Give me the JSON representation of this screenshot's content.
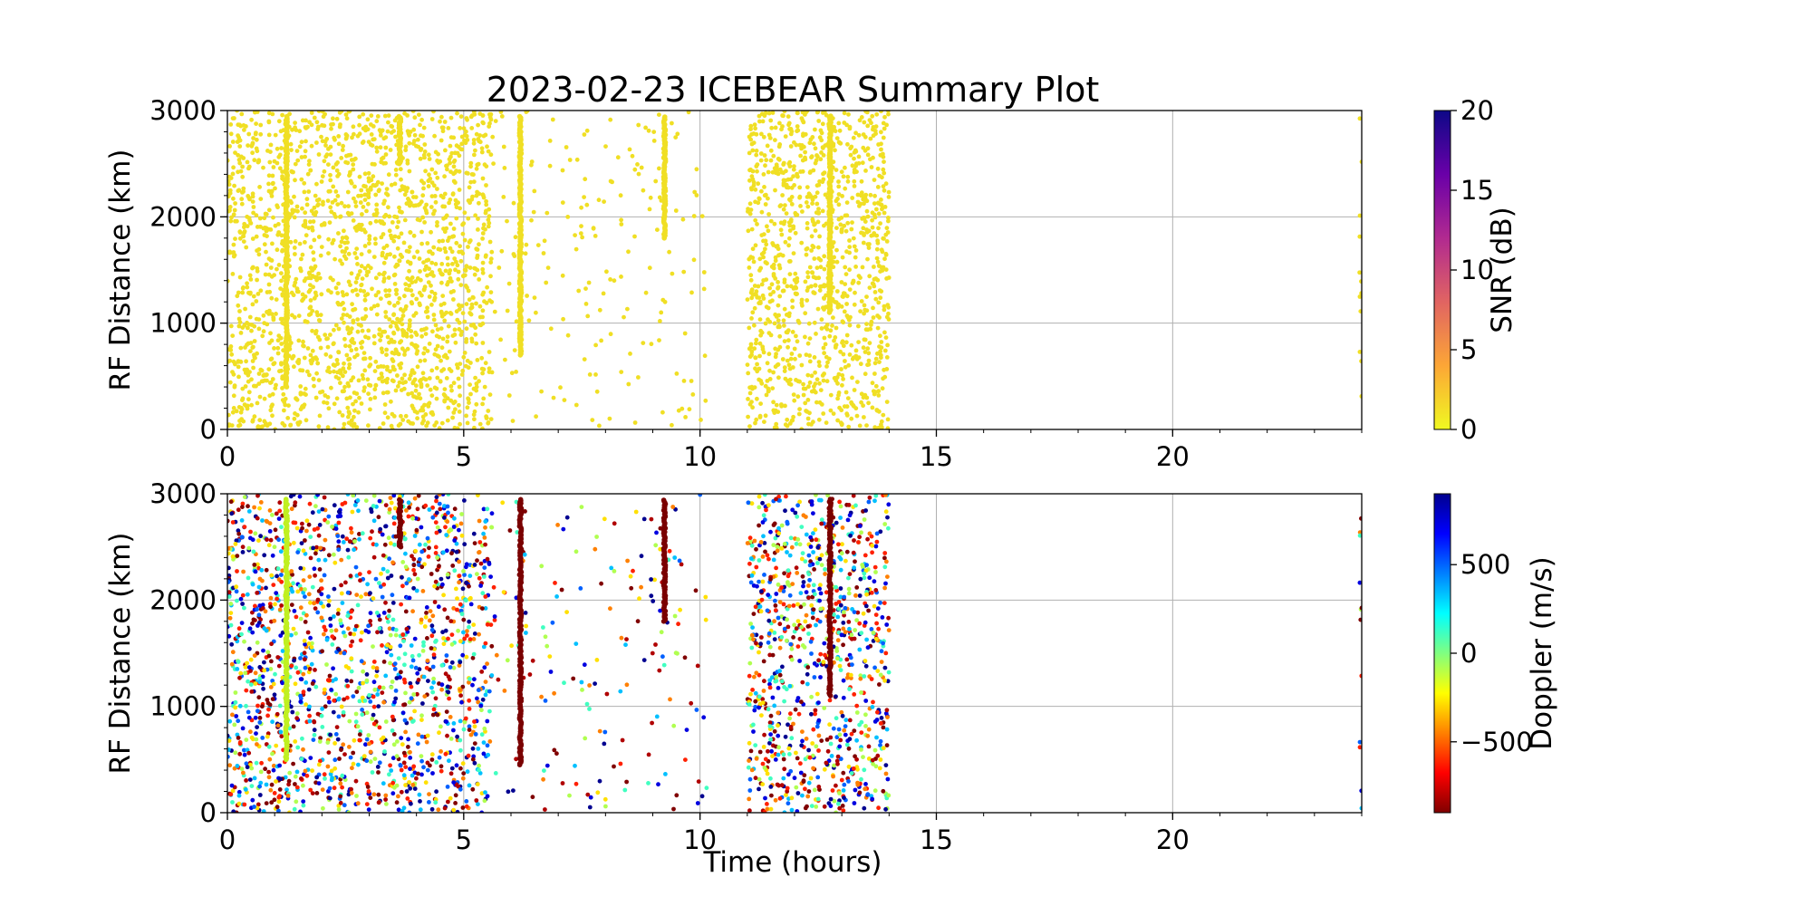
{
  "figure": {
    "title": "2023-02-23 ICEBEAR Summary Plot",
    "xlabel": "Time (hours)"
  },
  "chart_data": [
    {
      "type": "scatter",
      "name_key": "snr",
      "ylabel": "RF Distance (km)",
      "xlim": [
        0,
        24
      ],
      "ylim": [
        0,
        3000
      ],
      "x_ticks": [
        0,
        5,
        10,
        15,
        20
      ],
      "y_ticks": [
        0,
        1000,
        2000,
        3000
      ],
      "grid": true,
      "colorbar": {
        "label": "SNR (dB)",
        "range": [
          0,
          20
        ],
        "ticks": [
          0,
          5,
          10,
          15,
          20
        ],
        "colormap": "plasma_r",
        "colors": [
          "#f0f921",
          "#fca636",
          "#e16462",
          "#b12a90",
          "#6a00a8",
          "#0d0887"
        ]
      },
      "point_color": "#f0df24",
      "scatter_blocks": [
        {
          "x": [
            0,
            5.6
          ],
          "y": [
            0,
            3000
          ],
          "count": 2000
        },
        {
          "x": [
            5.6,
            10.2
          ],
          "y": [
            0,
            3000
          ],
          "count": 180
        },
        {
          "x": [
            11.0,
            14.0
          ],
          "y": [
            0,
            3000
          ],
          "count": 1100
        },
        {
          "x": [
            23.95,
            24.0
          ],
          "y": [
            0,
            3000
          ],
          "count": 12
        }
      ],
      "vertical_streaks": [
        {
          "x": 1.25,
          "y": [
            400,
            2950
          ]
        },
        {
          "x": 3.65,
          "y": [
            2500,
            2950
          ]
        },
        {
          "x": 6.2,
          "y": [
            700,
            2950
          ]
        },
        {
          "x": 9.25,
          "y": [
            1800,
            2950
          ]
        },
        {
          "x": 12.75,
          "y": [
            1100,
            2950
          ]
        }
      ]
    },
    {
      "type": "scatter",
      "name_key": "doppler",
      "ylabel": "RF Distance (km)",
      "xlim": [
        0,
        24
      ],
      "ylim": [
        0,
        3000
      ],
      "x_ticks": [
        0,
        5,
        10,
        15,
        20
      ],
      "y_ticks": [
        0,
        1000,
        2000,
        3000
      ],
      "grid": true,
      "colorbar": {
        "label": "Doppler (m/s)",
        "range": [
          -900,
          900
        ],
        "ticks": [
          -500,
          0,
          500
        ],
        "tick_labels": [
          "−500",
          "0",
          "500"
        ],
        "colormap": "jet_r",
        "colors": [
          "#800000",
          "#ff0000",
          "#ff8000",
          "#ffff00",
          "#80ff80",
          "#00ffff",
          "#0080ff",
          "#0000ff",
          "#00008f"
        ]
      },
      "point_colors": [
        "#800000",
        "#b00000",
        "#ff2000",
        "#ff8000",
        "#ffe000",
        "#b0ff50",
        "#40ffc0",
        "#00c0ff",
        "#0060ff",
        "#0000e0",
        "#000090"
      ],
      "scatter_blocks": [
        {
          "x": [
            0,
            5.6
          ],
          "y": [
            0,
            3000
          ],
          "count": 1700
        },
        {
          "x": [
            5.6,
            10.2
          ],
          "y": [
            0,
            3000
          ],
          "count": 170
        },
        {
          "x": [
            11.0,
            14.0
          ],
          "y": [
            0,
            3000
          ],
          "count": 950
        },
        {
          "x": [
            23.95,
            24.0
          ],
          "y": [
            0,
            3000
          ],
          "count": 12
        }
      ],
      "vertical_streaks": [
        {
          "x": 1.25,
          "y": [
            500,
            2950
          ],
          "color": "#c0f020"
        },
        {
          "x": 3.65,
          "y": [
            2500,
            2950
          ],
          "color": "#7a0000"
        },
        {
          "x": 6.2,
          "y": [
            450,
            2950
          ],
          "color": "#7a0000"
        },
        {
          "x": 9.25,
          "y": [
            1800,
            2950
          ],
          "color": "#7a0000"
        },
        {
          "x": 12.75,
          "y": [
            1100,
            2950
          ],
          "color": "#7a0000"
        }
      ]
    }
  ]
}
